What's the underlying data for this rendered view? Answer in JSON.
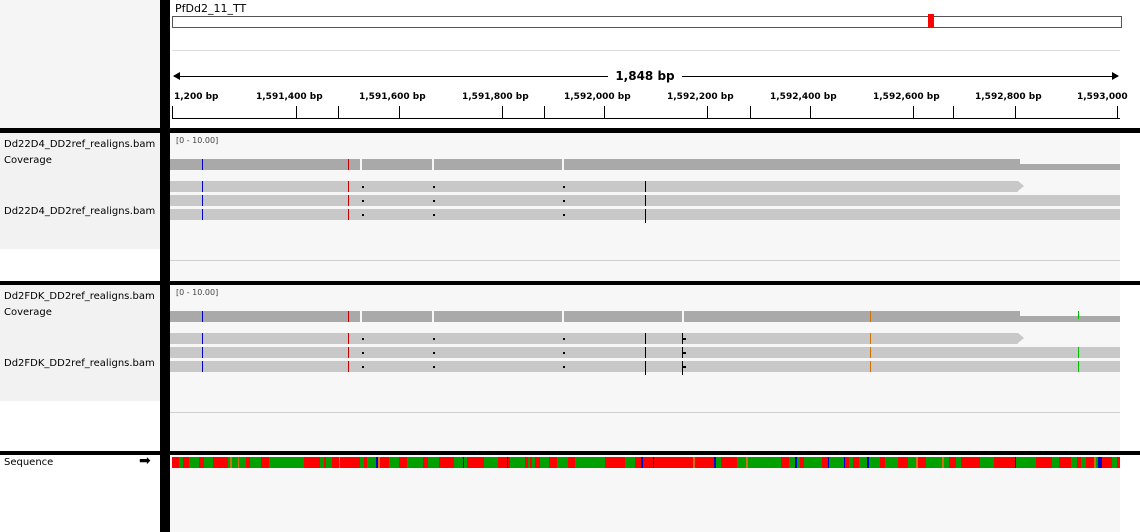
{
  "chromosome": "PfDd2_11_TT",
  "span_label": "1,848 bp",
  "ruler_ticks": [
    "1,200 bp",
    "1,591,400 bp",
    "1,591,600 bp",
    "1,591,800 bp",
    "1,592,000 bp",
    "1,592,200 bp",
    "1,592,400 bp",
    "1,592,600 bp",
    "1,592,800 bp",
    "1,593,000"
  ],
  "tracks": [
    {
      "coverage_name": "Dd22D4_DD2ref_realigns.bam Coverage",
      "alignment_name": "Dd22D4_DD2ref_realigns.bam",
      "range": "[0 - 10.00]"
    },
    {
      "coverage_name": "Dd2FDK_DD2ref_realigns.bam Coverage",
      "alignment_name": "Dd2FDK_DD2ref_realigns.bam",
      "range": "[0 - 10.00]"
    }
  ],
  "sequence_label": "Sequence",
  "sequence_arrow": "➡",
  "colors": {
    "A": "#00a000",
    "C": "#0000c8",
    "G": "#d17105",
    "T": "#ff0000",
    "mismatch_red": "#c80000",
    "mismatch_blue": "#0000c8",
    "mismatch_orange": "#d17105",
    "mismatch_green": "#00c000"
  }
}
